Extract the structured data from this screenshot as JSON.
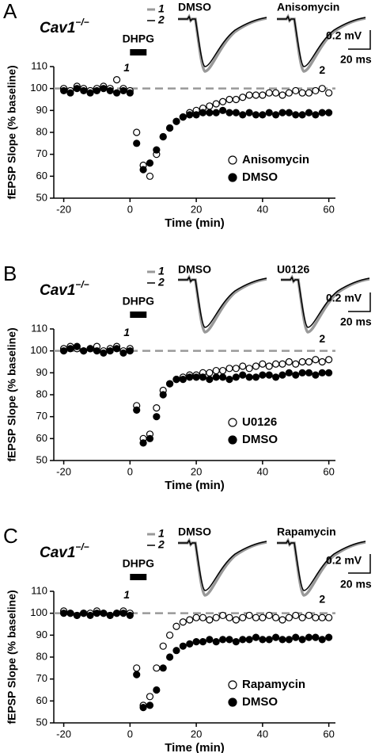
{
  "chart_data": [
    {
      "type": "scatter",
      "panel_label": "A",
      "genotype": "Cav1",
      "genotype_sup": "−/−",
      "xlabel": "Time (min)",
      "ylabel": "fEPSP Slope (% baseline)",
      "xlim": [
        -23,
        62
      ],
      "ylim": [
        50,
        110
      ],
      "xticks": [
        -20,
        0,
        20,
        40,
        60
      ],
      "yticks": [
        50,
        60,
        70,
        80,
        90,
        100,
        110
      ],
      "reference_line": 100,
      "stimulus": {
        "label": "DHPG",
        "start": 0,
        "end": 5
      },
      "annotations": [
        {
          "text": "1",
          "x": -1,
          "y": 107
        },
        {
          "text": "2",
          "x": 58,
          "y": 106
        }
      ],
      "trace_labels": [
        "DMSO",
        "Anisomycin"
      ],
      "trace_legend": [
        "1",
        "2"
      ],
      "scale_labels": [
        "0.2 mV",
        "20 ms"
      ],
      "legend": "lower right",
      "x": [
        -20,
        -18,
        -16,
        -14,
        -12,
        -10,
        -8,
        -6,
        -4,
        -2,
        0,
        2,
        4,
        6,
        8,
        10,
        12,
        14,
        16,
        18,
        20,
        22,
        24,
        26,
        28,
        30,
        32,
        34,
        36,
        38,
        40,
        42,
        44,
        46,
        48,
        50,
        52,
        54,
        56,
        58,
        60
      ],
      "series": [
        {
          "name": "Anisomycin",
          "color": "#000000",
          "filled": false,
          "values": [
            100,
            99,
            101,
            100,
            99,
            100,
            101,
            100,
            104,
            100,
            99,
            80,
            65,
            60,
            70,
            78,
            82,
            85,
            87,
            89,
            90,
            91,
            92,
            93,
            94,
            95,
            95,
            96,
            97,
            97,
            97,
            98,
            98,
            97,
            98,
            99,
            98,
            98,
            99,
            100,
            98
          ]
        },
        {
          "name": "DMSO",
          "color": "#000000",
          "filled": true,
          "values": [
            99,
            98,
            100,
            99,
            98,
            99,
            100,
            99,
            98,
            99,
            98,
            75,
            63,
            66,
            72,
            78,
            82,
            85,
            87,
            88,
            88,
            89,
            89,
            89,
            90,
            89,
            89,
            88,
            89,
            88,
            88,
            89,
            88,
            89,
            89,
            88,
            88,
            89,
            88,
            89,
            89
          ]
        }
      ]
    },
    {
      "type": "scatter",
      "panel_label": "B",
      "genotype": "Cav1",
      "genotype_sup": "−/−",
      "xlabel": "Time (min)",
      "ylabel": "fEPSP Slope (% baseline)",
      "xlim": [
        -23,
        62
      ],
      "ylim": [
        50,
        110
      ],
      "xticks": [
        -20,
        0,
        20,
        40,
        60
      ],
      "yticks": [
        50,
        60,
        70,
        80,
        90,
        100,
        110
      ],
      "reference_line": 100,
      "stimulus": {
        "label": "DHPG",
        "start": 0,
        "end": 5
      },
      "annotations": [
        {
          "text": "1",
          "x": -1,
          "y": 106
        },
        {
          "text": "2",
          "x": 58,
          "y": 103
        }
      ],
      "trace_labels": [
        "DMSO",
        "U0126"
      ],
      "trace_legend": [
        "1",
        "2"
      ],
      "scale_labels": [
        "0.2 mV",
        "20 ms"
      ],
      "legend": "lower right",
      "x": [
        -20,
        -18,
        -16,
        -14,
        -12,
        -10,
        -8,
        -6,
        -4,
        -2,
        0,
        2,
        4,
        6,
        8,
        10,
        12,
        14,
        16,
        18,
        20,
        22,
        24,
        26,
        28,
        30,
        32,
        34,
        36,
        38,
        40,
        42,
        44,
        46,
        48,
        50,
        52,
        54,
        56,
        58,
        60
      ],
      "series": [
        {
          "name": "U0126",
          "color": "#000000",
          "filled": false,
          "values": [
            101,
            102,
            101,
            100,
            101,
            102,
            100,
            101,
            102,
            100,
            101,
            75,
            60,
            62,
            74,
            82,
            85,
            87,
            88,
            89,
            89,
            90,
            90,
            91,
            91,
            92,
            92,
            93,
            92,
            93,
            94,
            93,
            94,
            94,
            95,
            94,
            95,
            95,
            96,
            95,
            96
          ]
        },
        {
          "name": "DMSO",
          "color": "#000000",
          "filled": true,
          "values": [
            100,
            101,
            102,
            100,
            101,
            100,
            99,
            100,
            101,
            99,
            100,
            73,
            58,
            60,
            70,
            80,
            85,
            87,
            87,
            88,
            88,
            88,
            87,
            88,
            88,
            87,
            88,
            89,
            88,
            88,
            89,
            89,
            88,
            89,
            90,
            89,
            90,
            90,
            89,
            90,
            90
          ]
        }
      ]
    },
    {
      "type": "scatter",
      "panel_label": "C",
      "genotype": "Cav1",
      "genotype_sup": "−/−",
      "xlabel": "Time (min)",
      "ylabel": "fEPSP Slope (% baseline)",
      "xlim": [
        -23,
        62
      ],
      "ylim": [
        50,
        110
      ],
      "xticks": [
        -20,
        0,
        20,
        40,
        60
      ],
      "yticks": [
        50,
        60,
        70,
        80,
        90,
        100,
        110
      ],
      "reference_line": 100,
      "stimulus": {
        "label": "DHPG",
        "start": 0,
        "end": 5
      },
      "annotations": [
        {
          "text": "1",
          "x": -1,
          "y": 106
        },
        {
          "text": "2",
          "x": 58,
          "y": 104
        }
      ],
      "trace_labels": [
        "DMSO",
        "Rapamycin"
      ],
      "trace_legend": [
        "1",
        "2"
      ],
      "scale_labels": [
        "0.2 mV",
        "20 ms"
      ],
      "legend": "lower right",
      "x": [
        -20,
        -18,
        -16,
        -14,
        -12,
        -10,
        -8,
        -6,
        -4,
        -2,
        0,
        2,
        4,
        6,
        8,
        10,
        12,
        14,
        16,
        18,
        20,
        22,
        24,
        26,
        28,
        30,
        32,
        34,
        36,
        38,
        40,
        42,
        44,
        46,
        48,
        50,
        52,
        54,
        56,
        58,
        60
      ],
      "series": [
        {
          "name": "Rapamycin",
          "color": "#000000",
          "filled": false,
          "values": [
            101,
            100,
            99,
            100,
            100,
            101,
            100,
            99,
            100,
            101,
            100,
            75,
            58,
            62,
            75,
            85,
            90,
            94,
            96,
            97,
            98,
            98,
            97,
            98,
            99,
            98,
            97,
            98,
            99,
            98,
            98,
            99,
            98,
            97,
            98,
            99,
            98,
            99,
            98,
            98,
            98
          ]
        },
        {
          "name": "DMSO",
          "color": "#000000",
          "filled": true,
          "values": [
            100,
            100,
            99,
            100,
            99,
            100,
            100,
            99,
            100,
            100,
            99,
            72,
            57,
            58,
            65,
            75,
            80,
            83,
            85,
            86,
            87,
            87,
            88,
            87,
            88,
            88,
            87,
            88,
            88,
            89,
            88,
            88,
            89,
            88,
            88,
            89,
            88,
            89,
            89,
            88,
            89
          ]
        }
      ]
    }
  ]
}
